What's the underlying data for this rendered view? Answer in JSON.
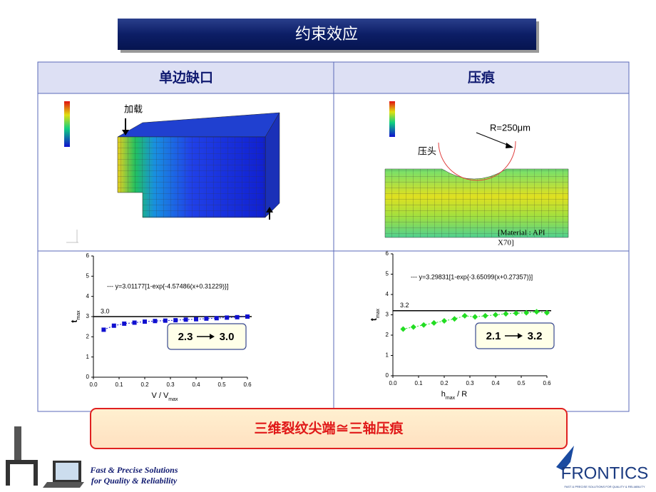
{
  "slide": {
    "title": "约束效应",
    "col_left": "单边缺口",
    "col_right": "压痕",
    "load_label": "加载",
    "radius_label": "R=250μm",
    "indenter_label": "压头",
    "material_label_1": "[Material : API",
    "material_label_2": "X70]",
    "conclusion": "三维裂纹尖端≅三轴压痕",
    "footer_1": "Fast & Precise Solutions",
    "footer_2": "for Quality & Reliability",
    "brand": "FRONTICS",
    "brand_tagline": "FAST & PRECISE SOLUTIONS FOR QUALITY & RELIABILITY"
  },
  "chart_data": [
    {
      "type": "scatter",
      "formula": "--- y=3.01177[1-exp{-4.57486(x+0.31229)}]",
      "xlabel": "V / V",
      "xlabel_sub": "max",
      "ylabel": "t",
      "ylabel_sub": "max",
      "color": "#1010d0",
      "marker": "square",
      "x": [
        0.04,
        0.08,
        0.12,
        0.16,
        0.2,
        0.24,
        0.28,
        0.32,
        0.36,
        0.4,
        0.44,
        0.48,
        0.52,
        0.56,
        0.6
      ],
      "values": [
        2.35,
        2.55,
        2.65,
        2.7,
        2.75,
        2.78,
        2.8,
        2.82,
        2.85,
        2.87,
        2.9,
        2.92,
        2.95,
        2.97,
        3.0
      ],
      "reference_line": {
        "value": 3,
        "label": "3.0"
      },
      "box_from": "2.3",
      "box_to": "3.0",
      "xlim": [
        0,
        0.6
      ],
      "xticks": [
        {
          "value": 0,
          "label": "0.0"
        },
        0.1,
        0.2,
        0.3,
        0.4,
        0.5,
        0.6
      ],
      "ylim": [
        0,
        6
      ],
      "yticks": [
        0,
        1,
        2,
        3,
        4,
        5,
        6
      ]
    },
    {
      "type": "scatter",
      "formula": "--- y=3.29831[1-exp{-3.65099(x+0.27357)}]",
      "xlabel": "h",
      "xlabel_sub": "max",
      "xlabel_tail": "/ R",
      "ylabel": "t",
      "ylabel_sub": "max",
      "color": "#22dd22",
      "marker": "diamond",
      "x": [
        0.04,
        0.08,
        0.12,
        0.16,
        0.2,
        0.24,
        0.28,
        0.32,
        0.36,
        0.4,
        0.44,
        0.48,
        0.52,
        0.56,
        0.6
      ],
      "values": [
        2.3,
        2.4,
        2.5,
        2.6,
        2.7,
        2.8,
        2.95,
        2.9,
        2.95,
        3.0,
        3.05,
        3.08,
        3.1,
        3.15,
        3.1
      ],
      "reference_line": {
        "value": 3.2,
        "label": "3.2"
      },
      "box_from": "2.1",
      "box_to": "3.2",
      "xlim": [
        0,
        0.6
      ],
      "xticks": [
        {
          "value": 0,
          "label": "0.0"
        },
        0.1,
        0.2,
        0.3,
        0.4,
        0.5,
        0.6
      ],
      "ylim": [
        0,
        6
      ],
      "yticks": [
        0,
        1,
        2,
        3,
        4,
        5,
        6
      ]
    }
  ]
}
